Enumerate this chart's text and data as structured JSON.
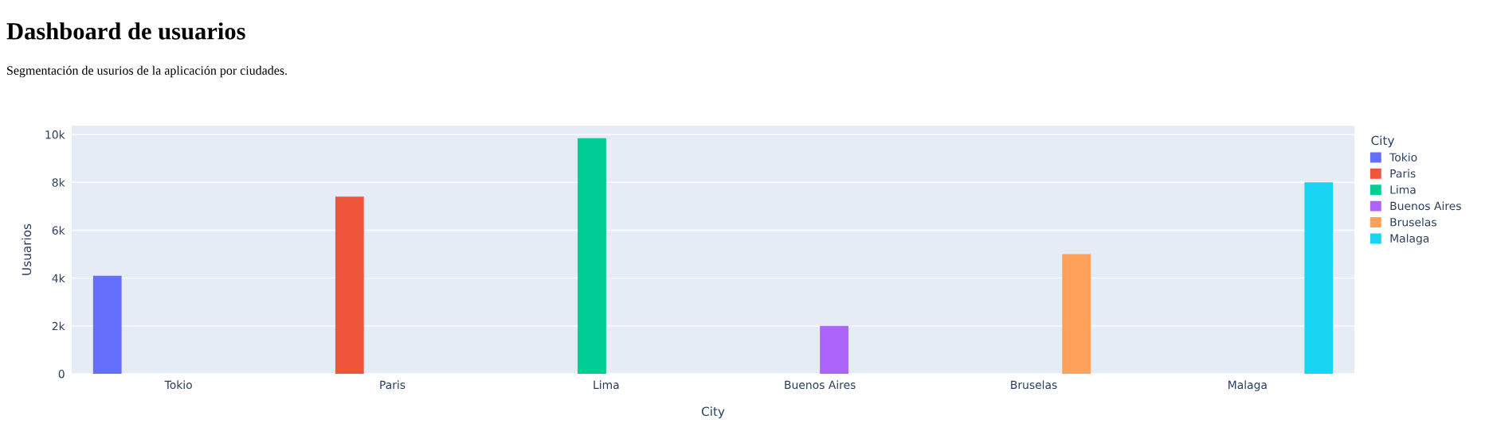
{
  "chart_data": {
    "type": "bar",
    "title": "Dashboard de usuarios",
    "subtitle": "Segmentación de usurios de la aplicación por ciudades.",
    "xlabel": "City",
    "ylabel": "Usuarios",
    "legend_title": "City",
    "categories": [
      "Tokio",
      "Paris",
      "Lima",
      "Buenos Aires",
      "Bruselas",
      "Malaga"
    ],
    "series": [
      {
        "name": "Tokio",
        "color": "#636efa",
        "values": [
          4100,
          null,
          null,
          null,
          null,
          null
        ]
      },
      {
        "name": "Paris",
        "color": "#ef553b",
        "values": [
          null,
          7400,
          null,
          null,
          null,
          null
        ]
      },
      {
        "name": "Lima",
        "color": "#00cc96",
        "values": [
          null,
          null,
          9850,
          null,
          null,
          null
        ]
      },
      {
        "name": "Buenos Aires",
        "color": "#ab63fa",
        "values": [
          null,
          null,
          null,
          2000,
          null,
          null
        ]
      },
      {
        "name": "Bruselas",
        "color": "#ffa15a",
        "values": [
          null,
          null,
          null,
          null,
          5000,
          null
        ]
      },
      {
        "name": "Malaga",
        "color": "#19d3f3",
        "values": [
          null,
          null,
          null,
          null,
          null,
          8000
        ]
      }
    ],
    "ylim": [
      0,
      10370
    ],
    "yticks": [
      0,
      {
        "value": 2000,
        "label": "2k"
      },
      {
        "value": 4000,
        "label": "4k"
      },
      {
        "value": 6000,
        "label": "6k"
      },
      {
        "value": 8000,
        "label": "8k"
      },
      {
        "value": 10000,
        "label": "10k"
      }
    ],
    "grid": "y",
    "legend": "top right"
  }
}
